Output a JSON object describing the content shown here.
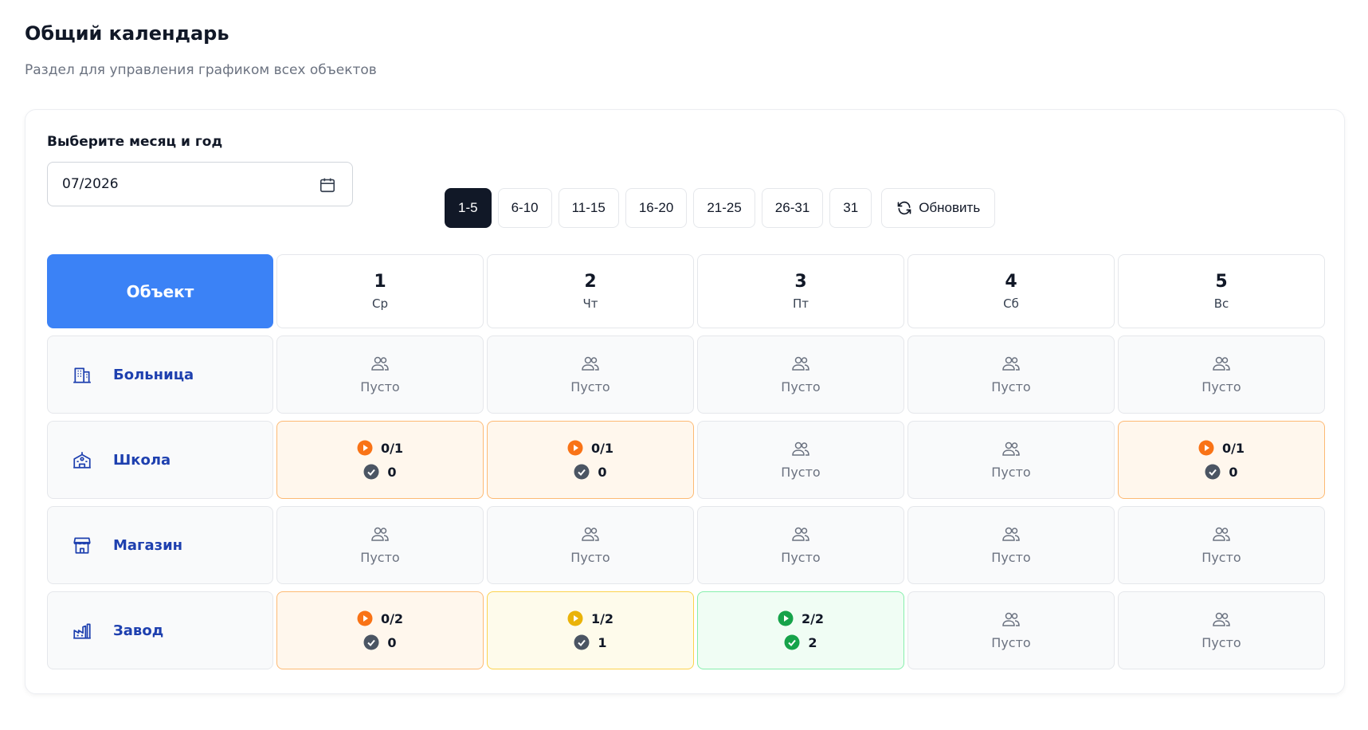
{
  "header": {
    "title": "Общий календарь",
    "subtitle": "Раздел для управления графиком всех объектов"
  },
  "picker": {
    "label": "Выберите месяц и год",
    "value": "07/2026"
  },
  "ranges": {
    "items": [
      "1-5",
      "6-10",
      "11-15",
      "16-20",
      "21-25",
      "26-31",
      "31"
    ],
    "active": 0,
    "refresh": "Обновить"
  },
  "table": {
    "corner": "Объект",
    "days": [
      {
        "day": 1,
        "weekday": "Ср"
      },
      {
        "day": 2,
        "weekday": "Чт"
      },
      {
        "day": 3,
        "weekday": "Пт"
      },
      {
        "day": 4,
        "weekday": "Сб"
      },
      {
        "day": 5,
        "weekday": "Вс"
      }
    ],
    "rows": [
      {
        "name": "Больница",
        "cells": [
          {
            "label": "Пусто"
          },
          {
            "label": "Пусто"
          },
          {
            "label": "Пусто"
          },
          {
            "label": "Пусто"
          },
          {
            "label": "Пусто"
          }
        ]
      },
      {
        "name": "Школа",
        "cells": [
          {
            "progress": "0/1",
            "done": 0,
            "color": "#f97316",
            "background": "#fff7ed",
            "border": "#fdba74",
            "check_color": "#4b5563"
          },
          {
            "progress": "0/1",
            "done": 0,
            "color": "#f97316",
            "background": "#fff7ed",
            "border": "#fdba74",
            "check_color": "#4b5563"
          },
          {
            "label": "Пусто"
          },
          {
            "label": "Пусто"
          },
          {
            "progress": "0/1",
            "done": 0,
            "color": "#f97316",
            "background": "#fff7ed",
            "border": "#fdba74",
            "check_color": "#4b5563"
          }
        ]
      },
      {
        "name": "Магазин",
        "cells": [
          {
            "label": "Пусто"
          },
          {
            "label": "Пусто"
          },
          {
            "label": "Пусто"
          },
          {
            "label": "Пусто"
          },
          {
            "label": "Пусто"
          }
        ]
      },
      {
        "name": "Завод",
        "cells": [
          {
            "progress": "0/2",
            "done": 0,
            "color": "#f97316",
            "background": "#fff7ed",
            "border": "#fdba74",
            "check_color": "#4b5563"
          },
          {
            "progress": "1/2",
            "done": 1,
            "color": "#eab308",
            "background": "#fefbeb",
            "border": "#fcd34d",
            "check_color": "#4b5563"
          },
          {
            "progress": "2/2",
            "done": 2,
            "color": "#16a34a",
            "background": "#f0fdf4",
            "border": "#86efac",
            "check_color": "#16a34a"
          },
          {
            "label": "Пусто"
          },
          {
            "label": "Пусто"
          }
        ]
      }
    ]
  }
}
